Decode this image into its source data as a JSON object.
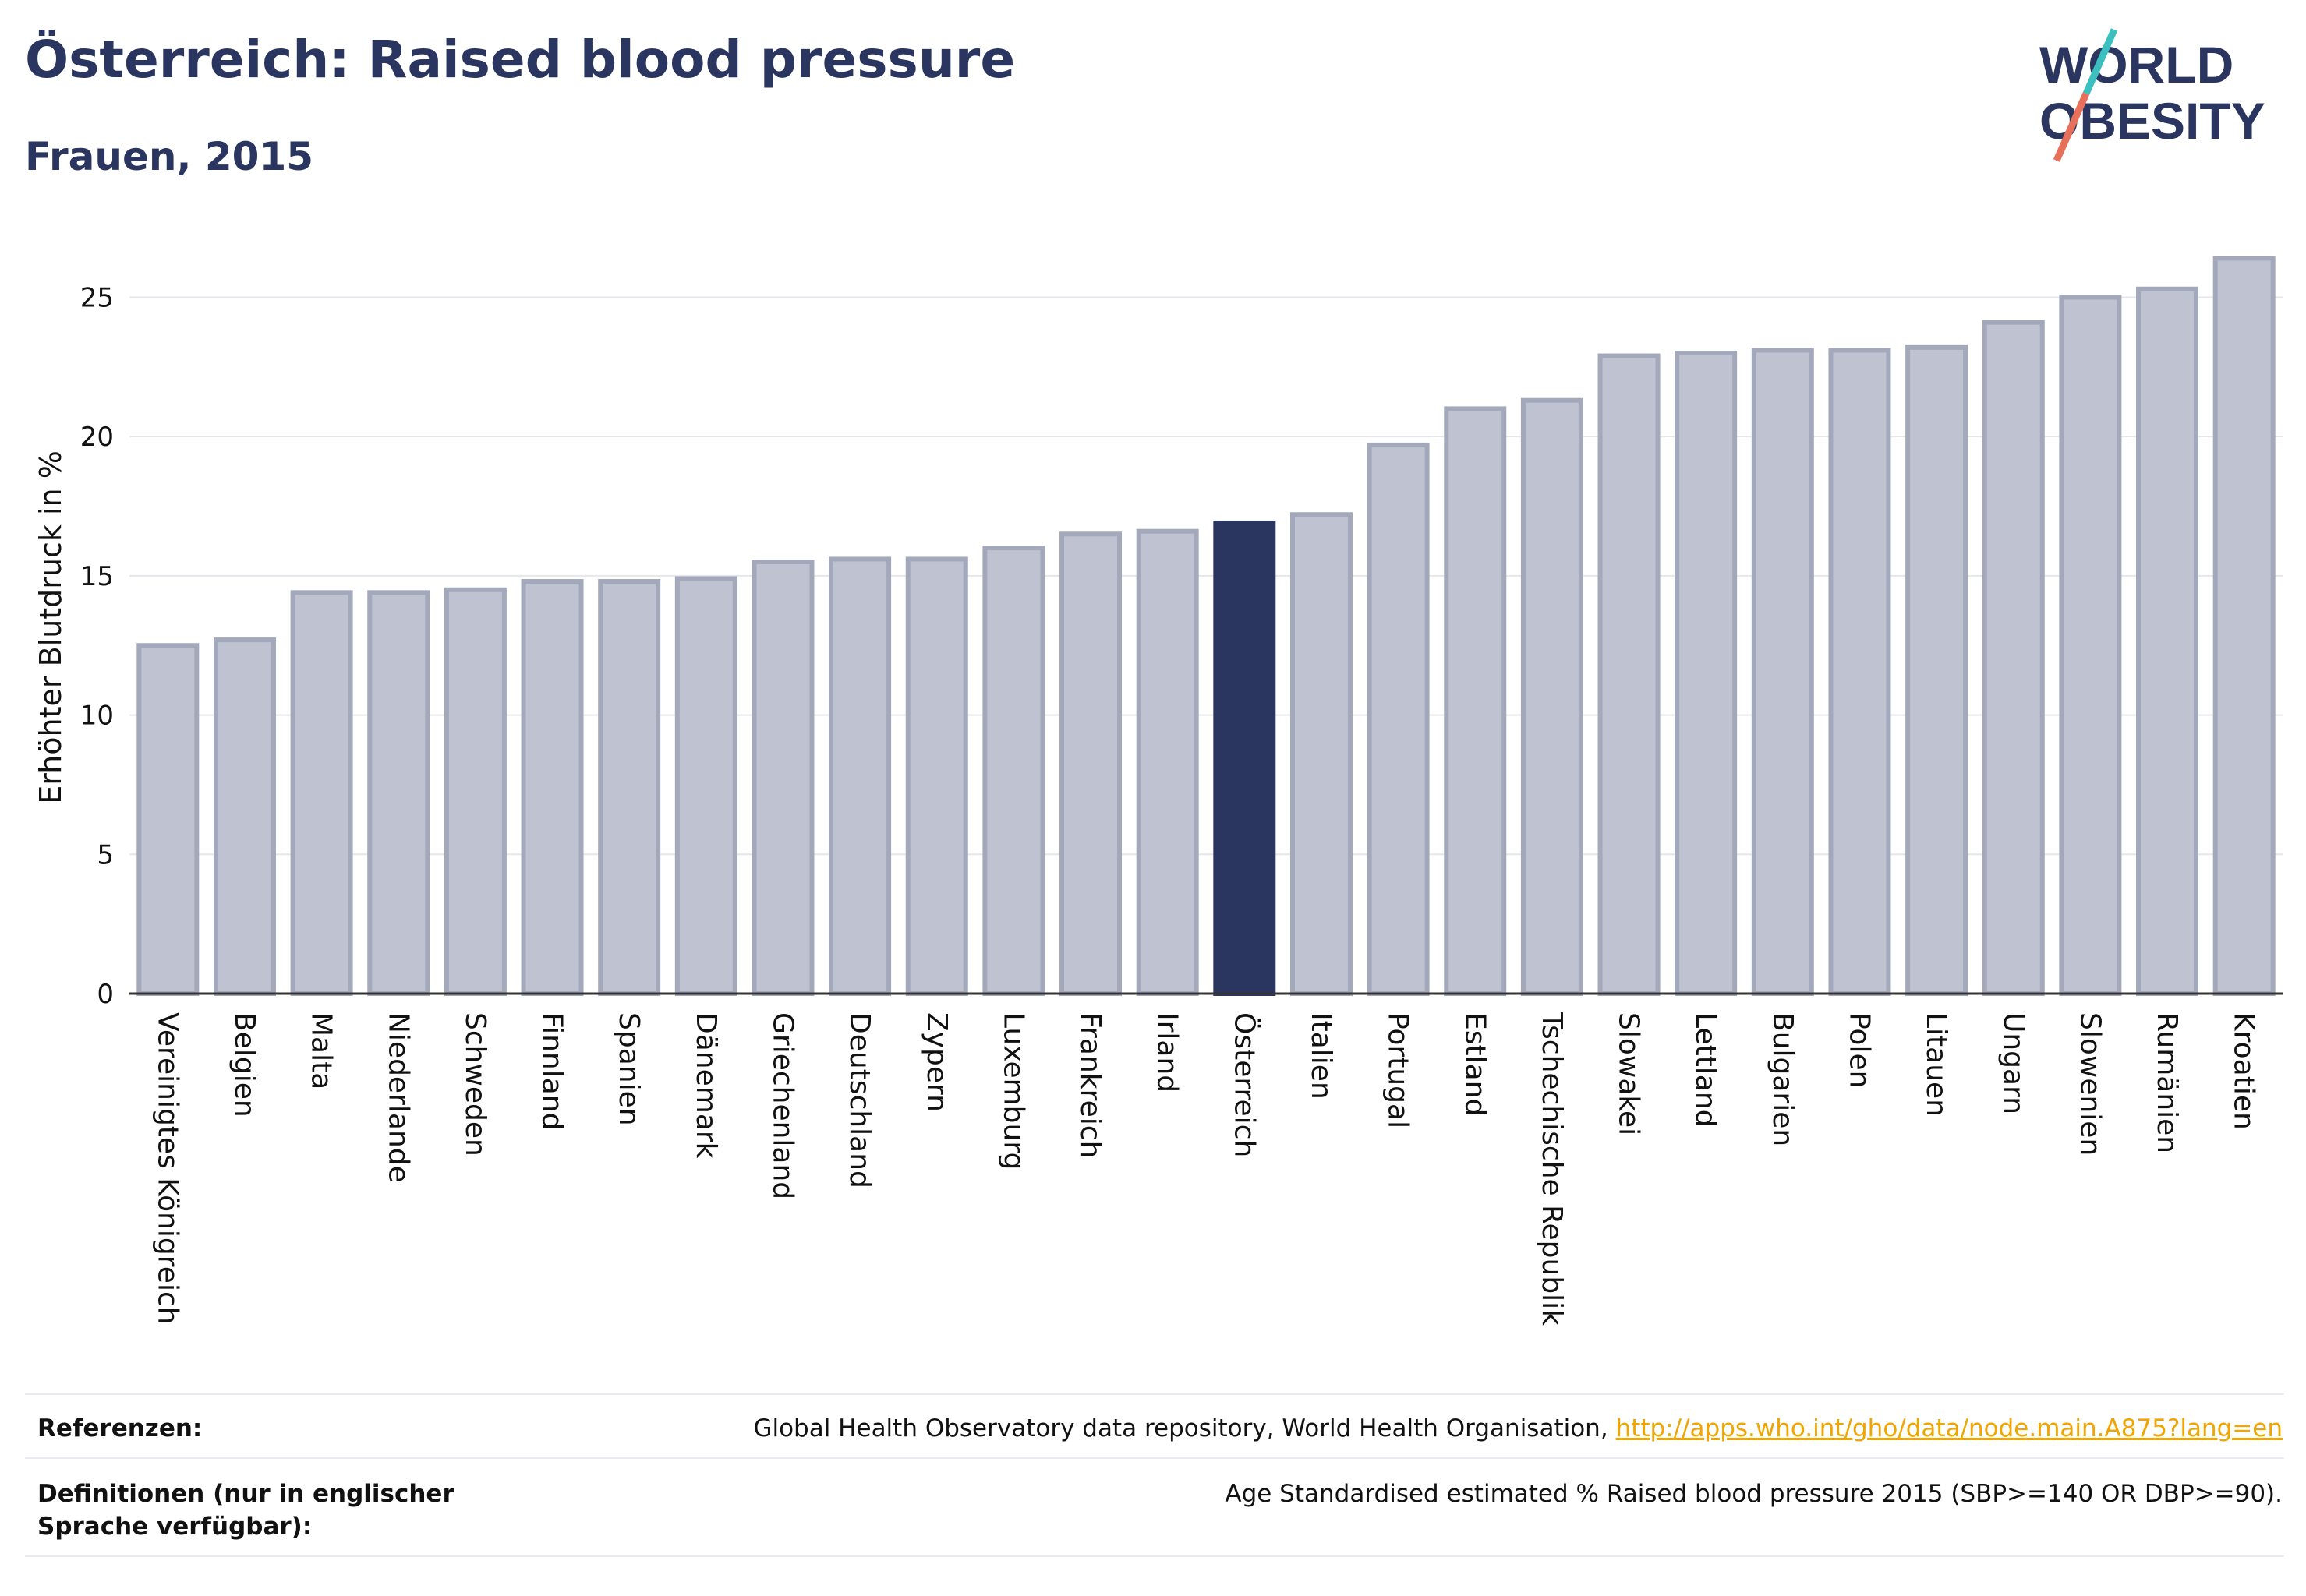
{
  "header": {
    "title": "Österreich: Raised blood pressure",
    "subtitle": "Frauen, 2015"
  },
  "logo": {
    "line1": "WORLD",
    "line2": "OBESITY",
    "accent_teal": "#3bbfbf",
    "accent_red": "#e8705a"
  },
  "colors": {
    "bar": "#bfc2d0",
    "bar_stroke": "#a3a8bb",
    "highlight": "#2a3560",
    "text": "#2a3560"
  },
  "chart_data": {
    "type": "bar",
    "title": "Österreich: Raised blood pressure",
    "subtitle": "Frauen, 2015",
    "xlabel": "",
    "ylabel": "Erhöhter Blutdruck in %",
    "ylim": [
      0,
      27
    ],
    "yticks": [
      0,
      5,
      10,
      15,
      20,
      25
    ],
    "grid": true,
    "highlight": "Österreich",
    "categories": [
      "Vereinigtes Königreich",
      "Belgien",
      "Malta",
      "Niederlande",
      "Schweden",
      "Finnland",
      "Spanien",
      "Dänemark",
      "Griechenland",
      "Deutschland",
      "Zypern",
      "Luxemburg",
      "Frankreich",
      "Irland",
      "Österreich",
      "Italien",
      "Portugal",
      "Estland",
      "Tschechische Republik",
      "Slowakei",
      "Lettland",
      "Bulgarien",
      "Polen",
      "Litauen",
      "Ungarn",
      "Slowenien",
      "Rumänien",
      "Kroatien"
    ],
    "values": [
      12.5,
      12.7,
      14.4,
      14.4,
      14.5,
      14.8,
      14.8,
      14.9,
      15.5,
      15.6,
      15.6,
      16.0,
      16.5,
      16.6,
      16.9,
      17.2,
      19.7,
      21.0,
      21.3,
      22.9,
      23.0,
      23.1,
      23.1,
      23.2,
      24.1,
      25.0,
      25.3,
      26.4
    ]
  },
  "footer": {
    "ref_label": "Referenzen:",
    "ref_text": "Global Health Observatory data repository, World Health Organisation, ",
    "ref_link": "http://apps.who.int/gho/data/node.main.A875?lang=en",
    "def_label": "Definitionen (nur in englischer Sprache verfügbar):",
    "def_text": "Age Standardised estimated % Raised blood pressure 2015 (SBP>=140 OR DBP>=90)."
  }
}
